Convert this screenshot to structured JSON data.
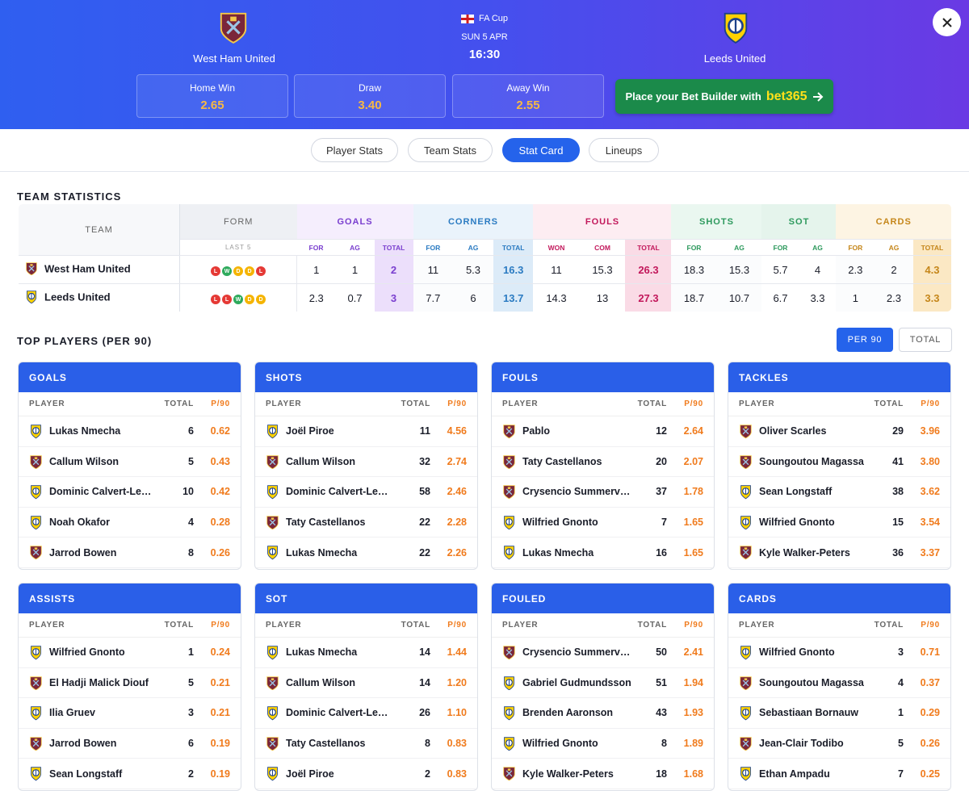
{
  "header": {
    "competition": "FA Cup",
    "date": "SUN 5 APR",
    "time": "16:30",
    "home_team": "West Ham United",
    "away_team": "Leeds United",
    "odds": [
      {
        "label": "Home Win",
        "value": "2.65"
      },
      {
        "label": "Draw",
        "value": "3.40"
      },
      {
        "label": "Away Win",
        "value": "2.55"
      }
    ],
    "bet_button": {
      "text": "Place your Bet Builder with",
      "brand": "bet365"
    }
  },
  "tabs": [
    "Player Stats",
    "Team Stats",
    "Stat Card",
    "Lineups"
  ],
  "active_tab": 2,
  "team_statistics": {
    "title": "TEAM STATISTICS",
    "team_header": "TEAM",
    "form_header": "FORM",
    "form_sub": "LAST 5",
    "groups": [
      {
        "name": "GOALS",
        "cols": [
          "FOR",
          "AG",
          "TOTAL"
        ]
      },
      {
        "name": "CORNERS",
        "cols": [
          "FOR",
          "AG",
          "TOTAL"
        ]
      },
      {
        "name": "FOULS",
        "cols": [
          "WON",
          "COM",
          "TOTAL"
        ]
      },
      {
        "name": "SHOTS",
        "cols": [
          "FOR",
          "AG"
        ]
      },
      {
        "name": "SOT",
        "cols": [
          "FOR",
          "AG"
        ]
      },
      {
        "name": "CARDS",
        "cols": [
          "FOR",
          "AG",
          "TOTAL"
        ]
      }
    ],
    "rows": [
      {
        "team": "West Ham United",
        "crest": 0,
        "form": [
          "L",
          "W",
          "D",
          "D",
          "L"
        ],
        "groups": [
          [
            1,
            1,
            2
          ],
          [
            11,
            5.3,
            16.3
          ],
          [
            11,
            15.3,
            26.3
          ],
          [
            18.3,
            15.3
          ],
          [
            5.7,
            4
          ],
          [
            2.3,
            2,
            4.3
          ]
        ]
      },
      {
        "team": "Leeds United",
        "crest": 1,
        "form": [
          "L",
          "L",
          "W",
          "D",
          "D"
        ],
        "groups": [
          [
            2.3,
            0.7,
            3
          ],
          [
            7.7,
            6,
            13.7
          ],
          [
            14.3,
            13,
            27.3
          ],
          [
            18.7,
            10.7
          ],
          [
            6.7,
            3.3
          ],
          [
            1,
            2.3,
            3.3
          ]
        ]
      }
    ]
  },
  "top_players": {
    "title": "TOP PLAYERS (PER 90)",
    "toggle": [
      "PER 90",
      "TOTAL"
    ],
    "active_toggle": 0,
    "player_header": "PLAYER",
    "total_header": "TOTAL",
    "p90_header": "P/90",
    "cards": [
      {
        "title": "GOALS",
        "rows": [
          {
            "player": "Lukas Nmecha",
            "team": 1,
            "total": 6,
            "p90": "0.62"
          },
          {
            "player": "Callum Wilson",
            "team": 0,
            "total": 5,
            "p90": "0.43"
          },
          {
            "player": "Dominic Calvert-Le…",
            "team": 1,
            "total": 10,
            "p90": "0.42"
          },
          {
            "player": "Noah Okafor",
            "team": 1,
            "total": 4,
            "p90": "0.28"
          },
          {
            "player": "Jarrod Bowen",
            "team": 0,
            "total": 8,
            "p90": "0.26"
          }
        ]
      },
      {
        "title": "SHOTS",
        "rows": [
          {
            "player": "Joël Piroe",
            "team": 1,
            "total": 11,
            "p90": "4.56"
          },
          {
            "player": "Callum Wilson",
            "team": 0,
            "total": 32,
            "p90": "2.74"
          },
          {
            "player": "Dominic Calvert-Le…",
            "team": 1,
            "total": 58,
            "p90": "2.46"
          },
          {
            "player": "Taty Castellanos",
            "team": 0,
            "total": 22,
            "p90": "2.28"
          },
          {
            "player": "Lukas Nmecha",
            "team": 1,
            "total": 22,
            "p90": "2.26"
          }
        ]
      },
      {
        "title": "FOULS",
        "rows": [
          {
            "player": "Pablo",
            "team": 0,
            "total": 12,
            "p90": "2.64"
          },
          {
            "player": "Taty Castellanos",
            "team": 0,
            "total": 20,
            "p90": "2.07"
          },
          {
            "player": "Crysencio Summerv…",
            "team": 0,
            "total": 37,
            "p90": "1.78"
          },
          {
            "player": "Wilfried Gnonto",
            "team": 1,
            "total": 7,
            "p90": "1.65"
          },
          {
            "player": "Lukas Nmecha",
            "team": 1,
            "total": 16,
            "p90": "1.65"
          }
        ]
      },
      {
        "title": "TACKLES",
        "rows": [
          {
            "player": "Oliver Scarles",
            "team": 0,
            "total": 29,
            "p90": "3.96"
          },
          {
            "player": "Soungoutou Magassa",
            "team": 0,
            "total": 41,
            "p90": "3.80"
          },
          {
            "player": "Sean Longstaff",
            "team": 1,
            "total": 38,
            "p90": "3.62"
          },
          {
            "player": "Wilfried Gnonto",
            "team": 1,
            "total": 15,
            "p90": "3.54"
          },
          {
            "player": "Kyle Walker-Peters",
            "team": 0,
            "total": 36,
            "p90": "3.37"
          }
        ]
      },
      {
        "title": "ASSISTS",
        "rows": [
          {
            "player": "Wilfried Gnonto",
            "team": 1,
            "total": 1,
            "p90": "0.24"
          },
          {
            "player": "El Hadji Malick Diouf",
            "team": 0,
            "total": 5,
            "p90": "0.21"
          },
          {
            "player": "Ilia Gruev",
            "team": 1,
            "total": 3,
            "p90": "0.21"
          },
          {
            "player": "Jarrod Bowen",
            "team": 0,
            "total": 6,
            "p90": "0.19"
          },
          {
            "player": "Sean Longstaff",
            "team": 1,
            "total": 2,
            "p90": "0.19"
          }
        ]
      },
      {
        "title": "SOT",
        "rows": [
          {
            "player": "Lukas Nmecha",
            "team": 1,
            "total": 14,
            "p90": "1.44"
          },
          {
            "player": "Callum Wilson",
            "team": 0,
            "total": 14,
            "p90": "1.20"
          },
          {
            "player": "Dominic Calvert-Le…",
            "team": 1,
            "total": 26,
            "p90": "1.10"
          },
          {
            "player": "Taty Castellanos",
            "team": 0,
            "total": 8,
            "p90": "0.83"
          },
          {
            "player": "Joël Piroe",
            "team": 1,
            "total": 2,
            "p90": "0.83"
          }
        ]
      },
      {
        "title": "FOULED",
        "rows": [
          {
            "player": "Crysencio Summerv…",
            "team": 0,
            "total": 50,
            "p90": "2.41"
          },
          {
            "player": "Gabriel Gudmundsson",
            "team": 1,
            "total": 51,
            "p90": "1.94"
          },
          {
            "player": "Brenden Aaronson",
            "team": 1,
            "total": 43,
            "p90": "1.93"
          },
          {
            "player": "Wilfried Gnonto",
            "team": 1,
            "total": 8,
            "p90": "1.89"
          },
          {
            "player": "Kyle Walker-Peters",
            "team": 0,
            "total": 18,
            "p90": "1.68"
          }
        ]
      },
      {
        "title": "CARDS",
        "rows": [
          {
            "player": "Wilfried Gnonto",
            "team": 1,
            "total": 3,
            "p90": "0.71"
          },
          {
            "player": "Soungoutou Magassa",
            "team": 0,
            "total": 4,
            "p90": "0.37"
          },
          {
            "player": "Sebastiaan Bornauw",
            "team": 1,
            "total": 1,
            "p90": "0.29"
          },
          {
            "player": "Jean-Clair Todibo",
            "team": 0,
            "total": 5,
            "p90": "0.26"
          },
          {
            "player": "Ethan Ampadu",
            "team": 1,
            "total": 7,
            "p90": "0.25"
          }
        ]
      }
    ]
  }
}
